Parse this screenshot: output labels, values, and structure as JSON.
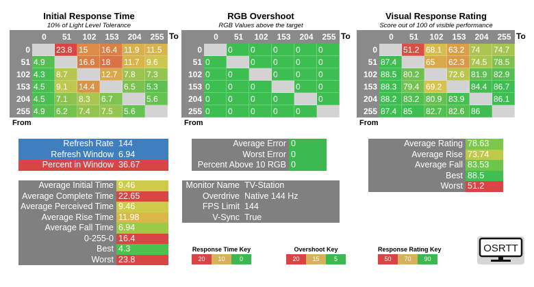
{
  "levels": [
    "0",
    "51",
    "102",
    "153",
    "204",
    "255"
  ],
  "to_label": "To",
  "from_label": "From",
  "matrices": [
    {
      "title": "Initial Response Time",
      "subtitle": "10% of Light Level Tolerance",
      "scale": "time",
      "rows": [
        [
          "",
          "23.8",
          "15",
          "16.4",
          "11.9",
          "11.5"
        ],
        [
          "4.9",
          "",
          "16.6",
          "18",
          "11.7",
          "9.6"
        ],
        [
          "4.3",
          "8.7",
          "",
          "12.7",
          "7.8",
          "7.3"
        ],
        [
          "4.5",
          "9.1",
          "14.4",
          "",
          "6.5",
          "5.3"
        ],
        [
          "4.5",
          "7.1",
          "8.3",
          "6.7",
          "",
          "5.6"
        ],
        [
          "4.9",
          "6.2",
          "7.4",
          "7.5",
          "5.6",
          ""
        ]
      ]
    },
    {
      "title": "RGB Overshoot",
      "subtitle": "RGB Values above the target",
      "scale": "over",
      "rows": [
        [
          "",
          "0",
          "0",
          "0",
          "0",
          "0"
        ],
        [
          "0",
          "",
          "0",
          "0",
          "0",
          "0"
        ],
        [
          "0",
          "0",
          "",
          "0",
          "0",
          "0"
        ],
        [
          "0",
          "0",
          "0",
          "",
          "0",
          "0"
        ],
        [
          "0",
          "0",
          "0",
          "0",
          "",
          "0"
        ],
        [
          "0",
          "0",
          "0",
          "0",
          "0",
          ""
        ]
      ]
    },
    {
      "title": "Visual Response Rating",
      "subtitle": "Score out of 100 of visible performance",
      "scale": "rating",
      "rows": [
        [
          "",
          "51.2",
          "68.1",
          "63.2",
          "74",
          "74.7"
        ],
        [
          "87.4",
          "",
          "65",
          "62.3",
          "74.5",
          "78.5"
        ],
        [
          "88.5",
          "80.2",
          "",
          "72.6",
          "81.9",
          "82.9"
        ],
        [
          "88.3",
          "79.4",
          "69.2",
          "",
          "84.4",
          "86.7"
        ],
        [
          "88.2",
          "83.2",
          "80.9",
          "83.9",
          "",
          "86.1"
        ],
        [
          "87.4",
          "85",
          "82.7",
          "82.6",
          "86",
          ""
        ]
      ]
    }
  ],
  "refresh": [
    {
      "label": "Refresh Rate",
      "value": "144",
      "color": "#3f7fbf",
      "vcolor": "#3f7fbf"
    },
    {
      "label": "Refresh Window",
      "value": "6.94",
      "color": "#3f7fbf",
      "vcolor": "#3f7fbf"
    },
    {
      "label": "Percent in Window",
      "value": "36.67",
      "color": "#d94545",
      "vcolor": "#d94545"
    }
  ],
  "times": [
    {
      "label": "Average Initial Time",
      "value": "9.46",
      "vcolor": "#cfcb4a"
    },
    {
      "label": "Average Complete Time",
      "value": "22.65",
      "vcolor": "#d94545"
    },
    {
      "label": "Average Perceived Time",
      "value": "9.46",
      "vcolor": "#cfcb4a"
    },
    {
      "label": "Average Rise Time",
      "value": "11.98",
      "vcolor": "#d9b84a"
    },
    {
      "label": "Average Fall Time",
      "value": "6.94",
      "vcolor": "#9ccb4a"
    },
    {
      "label": "0-255-0",
      "value": "16.4",
      "vcolor": "#d94545"
    },
    {
      "label": "Best",
      "value": "4.3",
      "vcolor": "#4cc24e"
    },
    {
      "label": "Worst",
      "value": "23.8",
      "vcolor": "#d94545"
    }
  ],
  "errors": [
    {
      "label": "Average Error",
      "value": "0"
    },
    {
      "label": "Worst Error",
      "value": "0"
    },
    {
      "label": "Percent Above 10 RGB",
      "value": "0"
    }
  ],
  "monitor": [
    {
      "label": "Monitor Name",
      "value": "TV-Station"
    },
    {
      "label": "Overdrive",
      "value": "Native 144 Hz"
    },
    {
      "label": "FPS Limit",
      "value": "144"
    },
    {
      "label": "V-Sync",
      "value": "True"
    }
  ],
  "ratings": [
    {
      "label": "Average Rating",
      "value": "78.63",
      "vcolor": "#7cc84a"
    },
    {
      "label": "Average Rise",
      "value": "73.74",
      "vcolor": "#bfc94a"
    },
    {
      "label": "Average Fall",
      "value": "83.53",
      "vcolor": "#6cc64a"
    },
    {
      "label": "Best",
      "value": "88.5",
      "vcolor": "#40c050"
    },
    {
      "label": "Worst",
      "value": "51.2",
      "vcolor": "#d94545"
    }
  ],
  "keys": [
    {
      "title": "Response Time Key",
      "values": [
        "20",
        "10",
        "0"
      ]
    },
    {
      "title": "Overshoot Key",
      "values": [
        "20",
        "15",
        "5"
      ]
    },
    {
      "title": "Response Rating Key",
      "values": [
        "50",
        "70",
        "90"
      ]
    }
  ],
  "key_colors": [
    "#d94545",
    "#d6b35a",
    "#3cb850"
  ],
  "logo": "OSRTT"
}
